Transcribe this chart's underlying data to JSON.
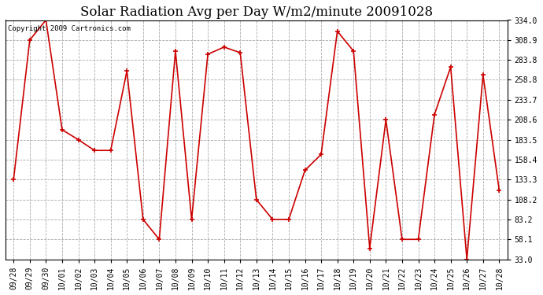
{
  "title": "Solar Radiation Avg per Day W/m2/minute 20091028",
  "copyright": "Copyright 2009 Cartronics.com",
  "labels": [
    "09/28",
    "09/29",
    "09/30",
    "10/01",
    "10/02",
    "10/03",
    "10/04",
    "10/05",
    "10/06",
    "10/07",
    "10/08",
    "10/09",
    "10/10",
    "10/11",
    "10/12",
    "10/13",
    "10/14",
    "10/15",
    "10/16",
    "10/17",
    "10/18",
    "10/19",
    "10/20",
    "10/21",
    "10/22",
    "10/23",
    "10/24",
    "10/25",
    "10/26",
    "10/27",
    "10/28"
  ],
  "values": [
    133.3,
    308.9,
    334.0,
    196.0,
    183.5,
    170.0,
    170.0,
    270.0,
    83.2,
    58.1,
    295.0,
    83.2,
    291.0,
    300.0,
    293.0,
    108.2,
    83.2,
    83.2,
    145.0,
    165.0,
    320.0,
    295.0,
    47.0,
    208.6,
    58.1,
    58.1,
    215.0,
    275.0,
    33.0,
    265.0,
    120.0
  ],
  "line_color": "#cc0000",
  "marker": "+",
  "marker_size": 5,
  "marker_edge_width": 1.2,
  "line_width": 1.2,
  "bg_color": "#ffffff",
  "grid_color": "#aaaaaa",
  "grid_style": "--",
  "ylim_min": 33.0,
  "ylim_max": 334.0,
  "yticks": [
    33.0,
    58.1,
    83.2,
    108.2,
    133.3,
    158.4,
    183.5,
    208.6,
    233.7,
    258.8,
    283.8,
    308.9,
    334.0
  ],
  "title_fontsize": 12,
  "tick_fontsize": 7,
  "copyright_fontsize": 6.5,
  "fig_width": 6.9,
  "fig_height": 3.75,
  "fig_dpi": 100
}
